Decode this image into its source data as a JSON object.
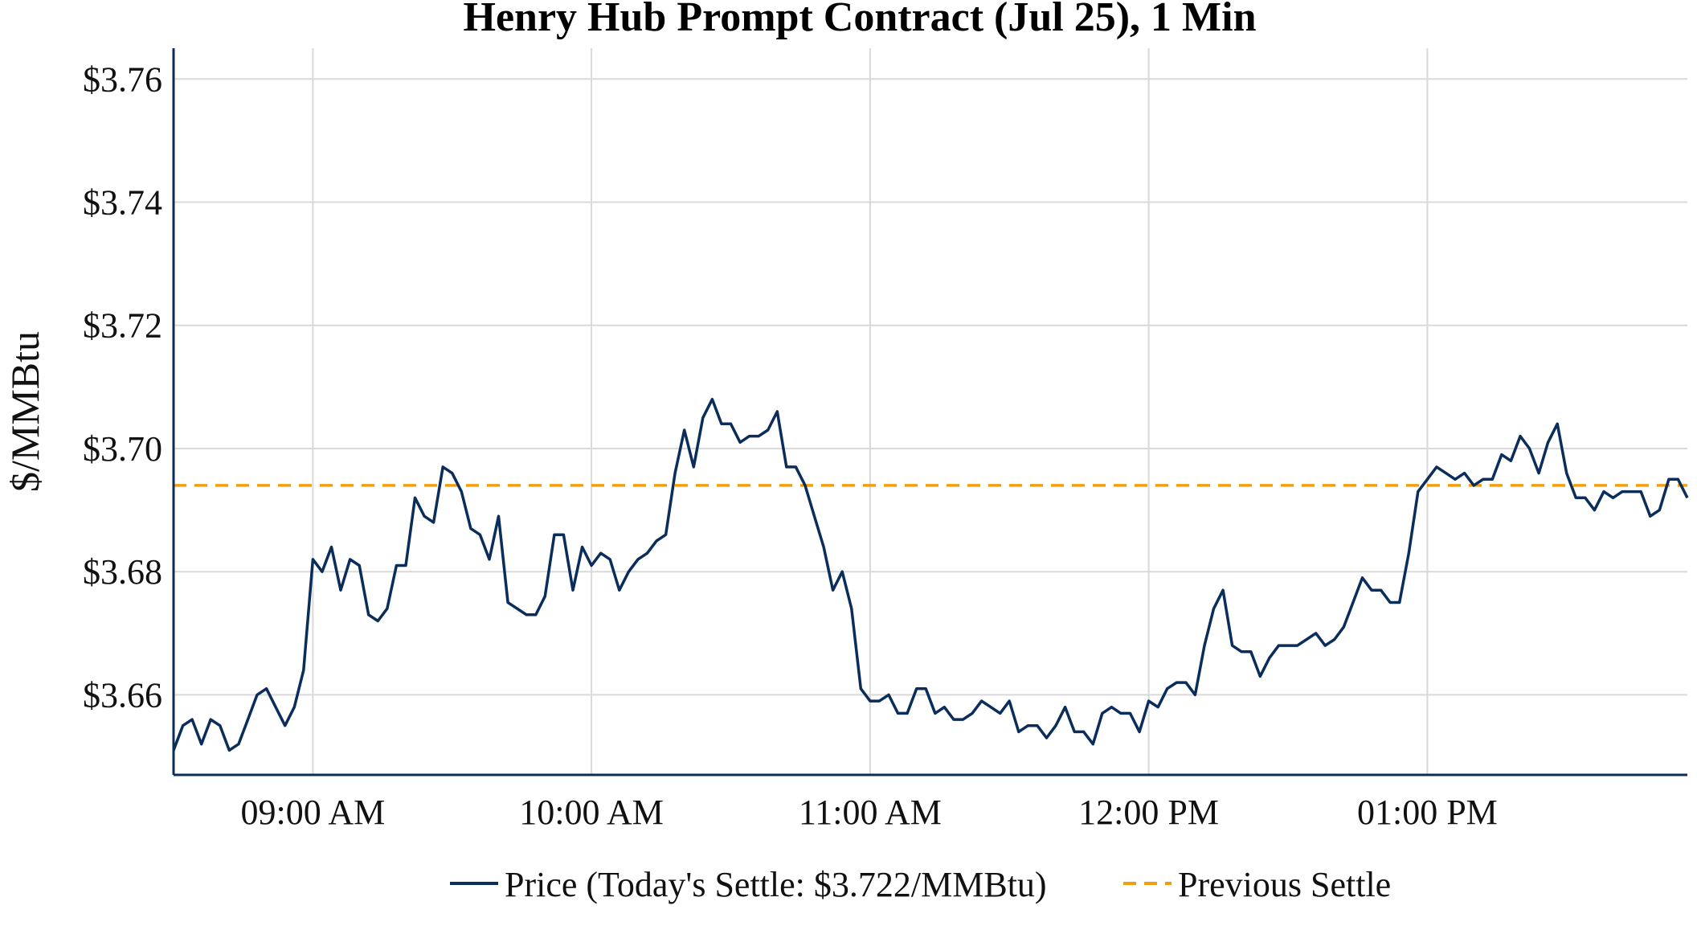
{
  "chart_data": {
    "type": "line",
    "title": "Henry Hub Prompt Contract (Jul 25), 1 Min",
    "xlabel": "",
    "ylabel": "$/MMBtu",
    "x_range": [
      "08:30",
      "13:56"
    ],
    "ylim": [
      3.647,
      3.765
    ],
    "y_ticks": [
      3.66,
      3.68,
      3.7,
      3.72,
      3.74,
      3.76
    ],
    "y_tick_labels": [
      "$3.66",
      "$3.68",
      "$3.70",
      "$3.72",
      "$3.74",
      "$3.76"
    ],
    "x_ticks": [
      "09:00",
      "10:00",
      "11:00",
      "12:00",
      "13:00"
    ],
    "x_tick_labels": [
      "09:00 AM",
      "10:00 AM",
      "11:00 AM",
      "12:00 PM",
      "01:00 PM"
    ],
    "grid": true,
    "legend_position": "bottom-center",
    "series": [
      {
        "name": "Price (Today's Settle: $3.722/MMBtu)",
        "color": "#0b2d5b",
        "style": "solid",
        "points": [
          [
            "08:30",
            3.651
          ],
          [
            "08:32",
            3.655
          ],
          [
            "08:34",
            3.656
          ],
          [
            "08:36",
            3.652
          ],
          [
            "08:38",
            3.656
          ],
          [
            "08:40",
            3.655
          ],
          [
            "08:42",
            3.651
          ],
          [
            "08:44",
            3.652
          ],
          [
            "08:46",
            3.656
          ],
          [
            "08:48",
            3.66
          ],
          [
            "08:50",
            3.661
          ],
          [
            "08:52",
            3.658
          ],
          [
            "08:54",
            3.655
          ],
          [
            "08:56",
            3.658
          ],
          [
            "08:58",
            3.664
          ],
          [
            "09:00",
            3.682
          ],
          [
            "09:02",
            3.68
          ],
          [
            "09:04",
            3.684
          ],
          [
            "09:06",
            3.677
          ],
          [
            "09:08",
            3.682
          ],
          [
            "09:10",
            3.681
          ],
          [
            "09:12",
            3.673
          ],
          [
            "09:14",
            3.672
          ],
          [
            "09:16",
            3.674
          ],
          [
            "09:18",
            3.681
          ],
          [
            "09:20",
            3.681
          ],
          [
            "09:22",
            3.692
          ],
          [
            "09:24",
            3.689
          ],
          [
            "09:26",
            3.688
          ],
          [
            "09:28",
            3.697
          ],
          [
            "09:30",
            3.696
          ],
          [
            "09:32",
            3.693
          ],
          [
            "09:34",
            3.687
          ],
          [
            "09:36",
            3.686
          ],
          [
            "09:38",
            3.682
          ],
          [
            "09:40",
            3.689
          ],
          [
            "09:42",
            3.675
          ],
          [
            "09:44",
            3.674
          ],
          [
            "09:46",
            3.673
          ],
          [
            "09:48",
            3.673
          ],
          [
            "09:50",
            3.676
          ],
          [
            "09:52",
            3.686
          ],
          [
            "09:54",
            3.686
          ],
          [
            "09:56",
            3.677
          ],
          [
            "09:58",
            3.684
          ],
          [
            "10:00",
            3.681
          ],
          [
            "10:02",
            3.683
          ],
          [
            "10:04",
            3.682
          ],
          [
            "10:06",
            3.677
          ],
          [
            "10:08",
            3.68
          ],
          [
            "10:10",
            3.682
          ],
          [
            "10:12",
            3.683
          ],
          [
            "10:14",
            3.685
          ],
          [
            "10:16",
            3.686
          ],
          [
            "10:18",
            3.696
          ],
          [
            "10:20",
            3.703
          ],
          [
            "10:22",
            3.697
          ],
          [
            "10:24",
            3.705
          ],
          [
            "10:26",
            3.708
          ],
          [
            "10:28",
            3.704
          ],
          [
            "10:30",
            3.704
          ],
          [
            "10:32",
            3.701
          ],
          [
            "10:34",
            3.702
          ],
          [
            "10:36",
            3.702
          ],
          [
            "10:38",
            3.703
          ],
          [
            "10:40",
            3.706
          ],
          [
            "10:42",
            3.697
          ],
          [
            "10:44",
            3.697
          ],
          [
            "10:46",
            3.694
          ],
          [
            "10:48",
            3.689
          ],
          [
            "10:50",
            3.684
          ],
          [
            "10:52",
            3.677
          ],
          [
            "10:54",
            3.68
          ],
          [
            "10:56",
            3.674
          ],
          [
            "10:58",
            3.661
          ],
          [
            "11:00",
            3.659
          ],
          [
            "11:02",
            3.659
          ],
          [
            "11:04",
            3.66
          ],
          [
            "11:06",
            3.657
          ],
          [
            "11:08",
            3.657
          ],
          [
            "11:10",
            3.661
          ],
          [
            "11:12",
            3.661
          ],
          [
            "11:14",
            3.657
          ],
          [
            "11:16",
            3.658
          ],
          [
            "11:18",
            3.656
          ],
          [
            "11:20",
            3.656
          ],
          [
            "11:22",
            3.657
          ],
          [
            "11:24",
            3.659
          ],
          [
            "11:26",
            3.658
          ],
          [
            "11:28",
            3.657
          ],
          [
            "11:30",
            3.659
          ],
          [
            "11:32",
            3.654
          ],
          [
            "11:34",
            3.655
          ],
          [
            "11:36",
            3.655
          ],
          [
            "11:38",
            3.653
          ],
          [
            "11:40",
            3.655
          ],
          [
            "11:42",
            3.658
          ],
          [
            "11:44",
            3.654
          ],
          [
            "11:46",
            3.654
          ],
          [
            "11:48",
            3.652
          ],
          [
            "11:50",
            3.657
          ],
          [
            "11:52",
            3.658
          ],
          [
            "11:54",
            3.657
          ],
          [
            "11:56",
            3.657
          ],
          [
            "11:58",
            3.654
          ],
          [
            "12:00",
            3.659
          ],
          [
            "12:02",
            3.658
          ],
          [
            "12:04",
            3.661
          ],
          [
            "12:06",
            3.662
          ],
          [
            "12:08",
            3.662
          ],
          [
            "12:10",
            3.66
          ],
          [
            "12:12",
            3.668
          ],
          [
            "12:14",
            3.674
          ],
          [
            "12:16",
            3.677
          ],
          [
            "12:18",
            3.668
          ],
          [
            "12:20",
            3.667
          ],
          [
            "12:22",
            3.667
          ],
          [
            "12:24",
            3.663
          ],
          [
            "12:26",
            3.666
          ],
          [
            "12:28",
            3.668
          ],
          [
            "12:30",
            3.668
          ],
          [
            "12:32",
            3.668
          ],
          [
            "12:34",
            3.669
          ],
          [
            "12:36",
            3.67
          ],
          [
            "12:38",
            3.668
          ],
          [
            "12:40",
            3.669
          ],
          [
            "12:42",
            3.671
          ],
          [
            "12:44",
            3.675
          ],
          [
            "12:46",
            3.679
          ],
          [
            "12:48",
            3.677
          ],
          [
            "12:50",
            3.677
          ],
          [
            "12:52",
            3.675
          ],
          [
            "12:54",
            3.675
          ],
          [
            "12:56",
            3.683
          ],
          [
            "12:58",
            3.693
          ],
          [
            "13:00",
            3.695
          ],
          [
            "13:02",
            3.697
          ],
          [
            "13:04",
            3.696
          ],
          [
            "13:06",
            3.695
          ],
          [
            "13:08",
            3.696
          ],
          [
            "13:10",
            3.694
          ],
          [
            "13:12",
            3.695
          ],
          [
            "13:14",
            3.695
          ],
          [
            "13:16",
            3.699
          ],
          [
            "13:18",
            3.698
          ],
          [
            "13:20",
            3.702
          ],
          [
            "13:22",
            3.7
          ],
          [
            "13:24",
            3.696
          ],
          [
            "13:26",
            3.701
          ],
          [
            "13:28",
            3.704
          ],
          [
            "13:30",
            3.696
          ],
          [
            "13:32",
            3.692
          ],
          [
            "13:34",
            3.692
          ],
          [
            "13:36",
            3.69
          ],
          [
            "13:38",
            3.693
          ],
          [
            "13:40",
            3.692
          ],
          [
            "13:42",
            3.693
          ],
          [
            "13:44",
            3.693
          ],
          [
            "13:46",
            3.693
          ],
          [
            "13:48",
            3.689
          ],
          [
            "13:50",
            3.69
          ],
          [
            "13:52",
            3.695
          ],
          [
            "13:54",
            3.695
          ],
          [
            "13:56",
            3.692
          ]
        ]
      },
      {
        "name": "Previous Settle",
        "color": "#f59e0b",
        "style": "dashed",
        "value": 3.694
      }
    ]
  }
}
